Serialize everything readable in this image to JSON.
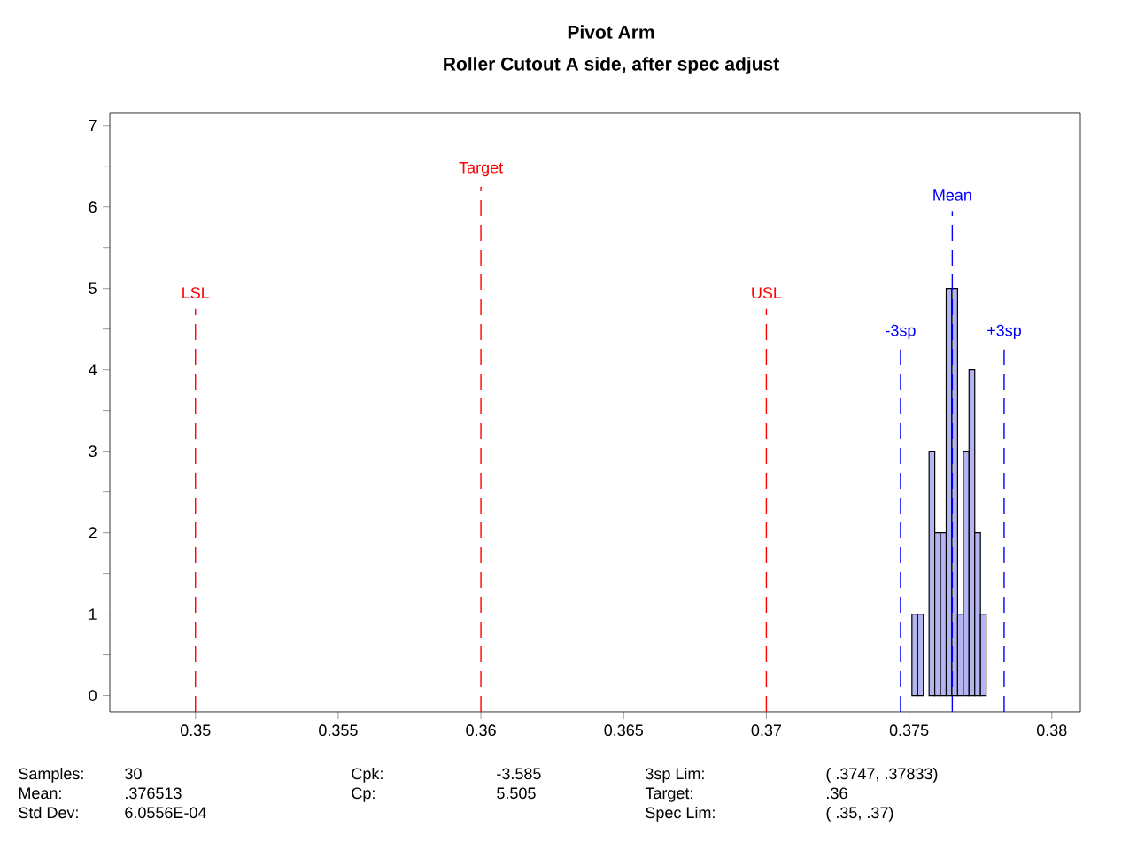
{
  "chart_data": {
    "type": "histogram",
    "title": "Pivot Arm",
    "subtitle": "Roller Cutout A side, after spec adjust",
    "bins": [
      0.3751,
      0.3753,
      0.3755,
      0.3757,
      0.3759,
      0.3761,
      0.3763,
      0.3765,
      0.3767,
      0.3769,
      0.3771,
      0.3773,
      0.3775,
      0.3777
    ],
    "values": [
      1,
      1,
      0,
      3,
      2,
      2,
      5,
      5,
      1,
      3,
      4,
      2,
      1
    ],
    "color": "#b4b4f0",
    "xlim": [
      0.347,
      0.381
    ],
    "xticks": [
      0.35,
      0.355,
      0.36,
      0.365,
      0.37,
      0.375,
      0.38
    ],
    "ylim": [
      -0.2,
      7.15
    ],
    "yticks": [
      0,
      {
        "value": 0.5,
        "label": null
      },
      1,
      {
        "value": 1.5,
        "label": null
      },
      2,
      {
        "value": 2.5,
        "label": null
      },
      3,
      {
        "value": 3.5,
        "label": null
      },
      4,
      {
        "value": 4.5,
        "label": null
      },
      5,
      {
        "value": 5.5,
        "label": null
      },
      6,
      {
        "value": 6.5,
        "label": null
      },
      7
    ],
    "grid": false,
    "ref_lines": [
      {
        "axis": "x",
        "value": 0.35,
        "label": "LSL",
        "color": "#ff0000",
        "line_style": "dashed"
      },
      {
        "axis": "x",
        "value": 0.36,
        "label": "Target",
        "color": "#ff0000",
        "line_style": "dashed"
      },
      {
        "axis": "x",
        "value": 0.37,
        "label": "USL",
        "color": "#ff0000",
        "line_style": "dashed"
      },
      {
        "axis": "x",
        "value": 0.376513,
        "label": "Mean",
        "color": "#0000ff",
        "line_style": "dashed"
      },
      {
        "axis": "x",
        "value": 0.3747,
        "label": "-3sp",
        "color": "#0000ff",
        "line_style": "dashed"
      },
      {
        "axis": "x",
        "value": 0.37833,
        "label": "+3sp",
        "color": "#0000ff",
        "line_style": "dashed"
      }
    ],
    "annotations": [
      "Samples:",
      "30",
      "Mean:",
      ".376513",
      "Std Dev:",
      "6.0556E-04",
      "Cpk:",
      "-3.585",
      "Cp:",
      "5.505",
      "3sp Lim:",
      "( .3747,   .37833)",
      "Target:",
      ".36",
      "Spec Lim:",
      "( .35,   .37)"
    ]
  }
}
